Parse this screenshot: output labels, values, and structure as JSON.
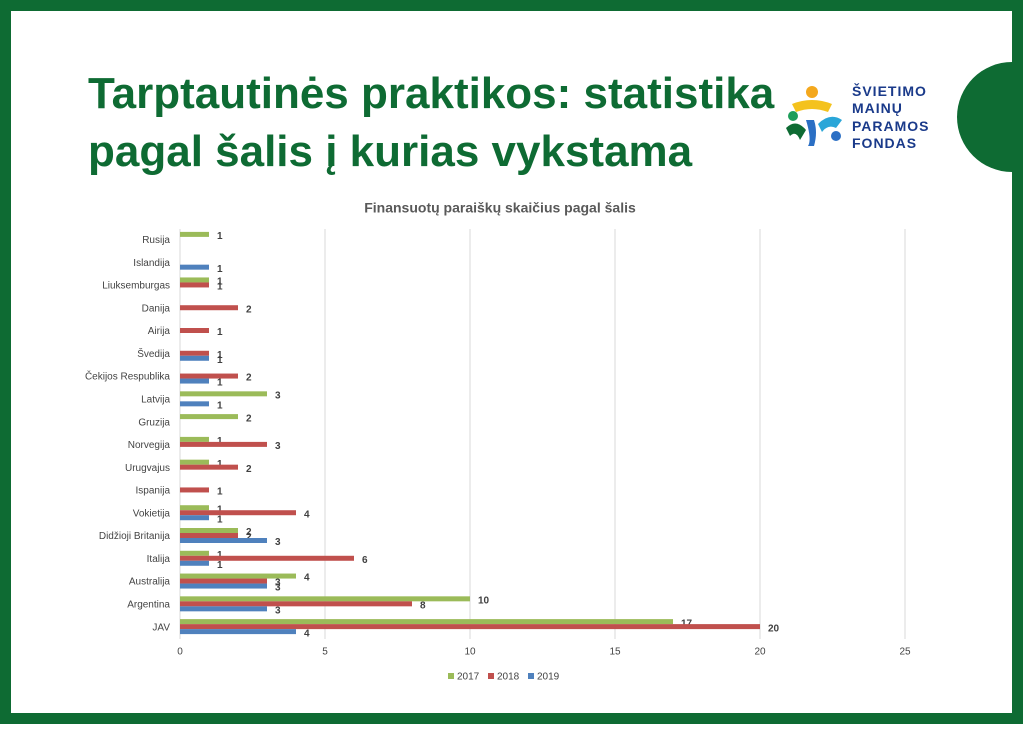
{
  "header": {
    "title_lines": [
      "Tarptautinės praktikos: statistika",
      "pagal šalis į kurias vykstama"
    ]
  },
  "logo": {
    "lines": [
      "ŠVIETIMO",
      "MAINŲ",
      "PARAMOS",
      "FONDAS"
    ]
  },
  "chart_data": {
    "type": "bar",
    "orientation": "horizontal",
    "title": "Finansuotų paraiškų skaičius pagal šalis",
    "categories": [
      "Rusija",
      "Islandija",
      "Liuksemburgas",
      "Danija",
      "Airija",
      "Švedija",
      "Čekijos Respublika",
      "Latvija",
      "Gruzija",
      "Norvegija",
      "Urugvajus",
      "Ispanija",
      "Vokietija",
      "Didžioji Britanija",
      "Italija",
      "Australija",
      "Argentina",
      "JAV"
    ],
    "series": [
      {
        "name": "2017",
        "color": "#9bbb59",
        "values": [
          1,
          null,
          1,
          null,
          null,
          null,
          null,
          3,
          2,
          1,
          1,
          null,
          1,
          2,
          1,
          4,
          10,
          17
        ]
      },
      {
        "name": "2018",
        "color": "#c0504d",
        "values": [
          null,
          null,
          1,
          2,
          1,
          1,
          2,
          null,
          null,
          3,
          2,
          1,
          4,
          2,
          6,
          3,
          8,
          20
        ]
      },
      {
        "name": "2019",
        "color": "#4f81bd",
        "values": [
          null,
          1,
          null,
          null,
          null,
          1,
          1,
          1,
          null,
          null,
          null,
          null,
          1,
          3,
          1,
          3,
          3,
          4
        ]
      }
    ],
    "xlim": [
      0,
      25
    ],
    "xticks": [
      0,
      5,
      10,
      15,
      20,
      25
    ],
    "grid": true,
    "legend": "bottom"
  }
}
